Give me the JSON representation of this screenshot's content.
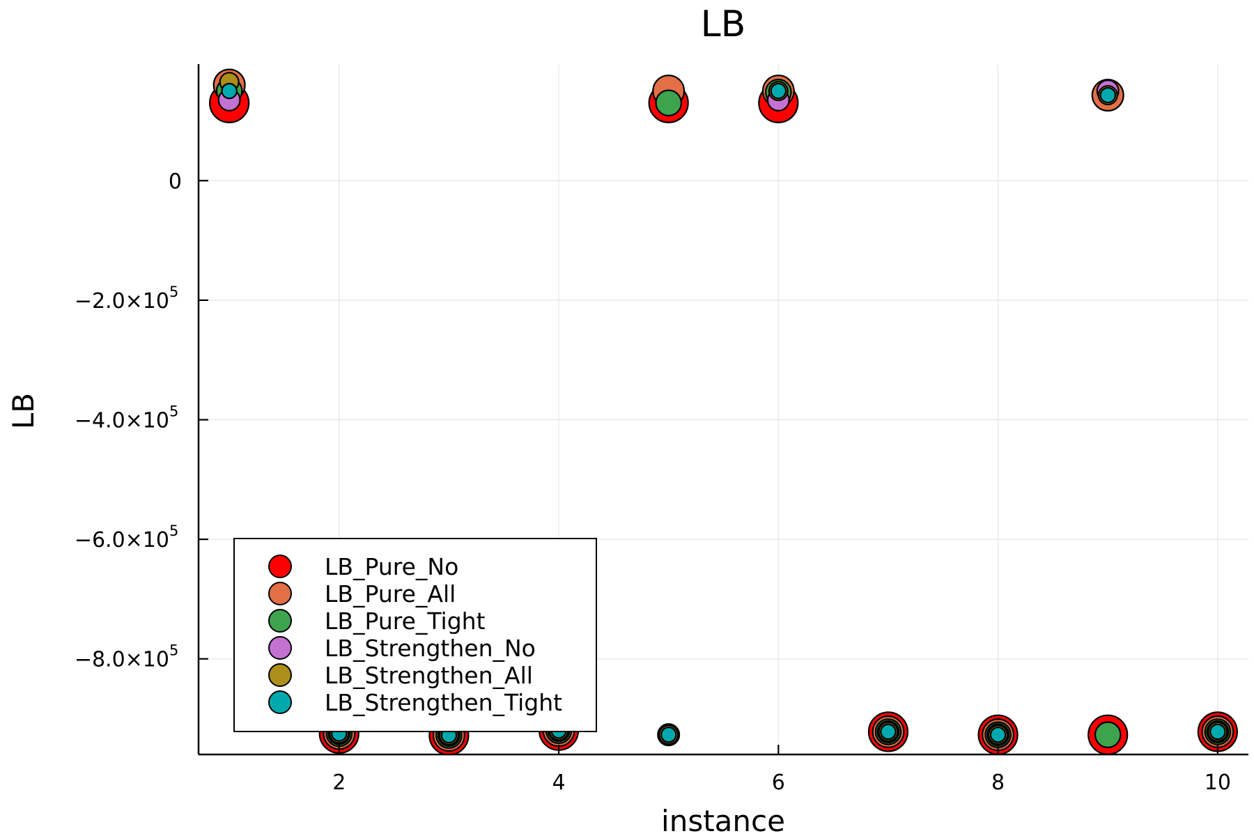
{
  "chart_data": {
    "type": "scatter",
    "title": "LB",
    "xlabel": "instance",
    "ylabel": "LB",
    "xlim": [
      0.72,
      10.28
    ],
    "ylim": [
      -960000,
      195000
    ],
    "xticks": [
      {
        "value": 2,
        "label": "2"
      },
      {
        "value": 4,
        "label": "4"
      },
      {
        "value": 6,
        "label": "6"
      },
      {
        "value": 8,
        "label": "8"
      },
      {
        "value": 10,
        "label": "10"
      }
    ],
    "yticks": [
      {
        "value": 0,
        "label": "0",
        "exponent": ""
      },
      {
        "value": -200000,
        "label": "−2.0×10",
        "exponent": "5"
      },
      {
        "value": -400000,
        "label": "−4.0×10",
        "exponent": "5"
      },
      {
        "value": -600000,
        "label": "−6.0×10",
        "exponent": "5"
      },
      {
        "value": -800000,
        "label": "−8.0×10",
        "exponent": "5"
      }
    ],
    "grid": true,
    "legend_position": "bottom-left",
    "series": [
      {
        "name": "LB_Pure_No",
        "color": "#ff0000",
        "marker_scale": 1.0,
        "x": [
          1,
          2,
          3,
          4,
          5,
          6,
          7,
          8,
          9,
          10
        ],
        "y": [
          130000,
          -925000,
          -928000,
          -920000,
          130000,
          130000,
          -922000,
          -927000,
          -927000,
          -922000
        ]
      },
      {
        "name": "LB_Pure_All",
        "color": "#e26f46",
        "marker_scale": 0.8,
        "x": [
          1,
          2,
          3,
          4,
          5,
          6,
          7,
          8,
          9,
          10
        ],
        "y": [
          160000,
          -925000,
          -928000,
          -920000,
          150000,
          150000,
          -922000,
          -927000,
          143000,
          -922000
        ]
      },
      {
        "name": "LB_Pure_Tight",
        "color": "#3da44d",
        "marker_scale": 0.65,
        "x": [
          1,
          2,
          3,
          4,
          5,
          6,
          7,
          8,
          9,
          10
        ],
        "y": [
          150000,
          -925000,
          -928000,
          -920000,
          130000,
          148000,
          -922000,
          -927000,
          -927000,
          -922000
        ]
      },
      {
        "name": "LB_Strengthen_No",
        "color": "#c371d2",
        "marker_scale": 0.55,
        "x": [
          1,
          2,
          3,
          4,
          5,
          6,
          7,
          8,
          9,
          10
        ],
        "y": [
          135000,
          -925000,
          -928000,
          -920000,
          -927000,
          135000,
          -922000,
          -927000,
          150000,
          -922000
        ]
      },
      {
        "name": "LB_Strengthen_All",
        "color": "#ac8e18",
        "marker_scale": 0.48,
        "x": [
          1,
          2,
          3,
          4,
          5,
          6,
          7,
          8,
          9,
          10
        ],
        "y": [
          165000,
          -925000,
          -928000,
          -920000,
          -927000,
          150000,
          -922000,
          -927000,
          143000,
          -922000
        ]
      },
      {
        "name": "LB_Strengthen_Tight",
        "color": "#00a9ad",
        "marker_scale": 0.38,
        "x": [
          1,
          2,
          3,
          4,
          5,
          6,
          7,
          8,
          9,
          10
        ],
        "y": [
          150000,
          -925000,
          -928000,
          -920000,
          -927000,
          150000,
          -922000,
          -927000,
          143000,
          -922000
        ]
      }
    ]
  }
}
